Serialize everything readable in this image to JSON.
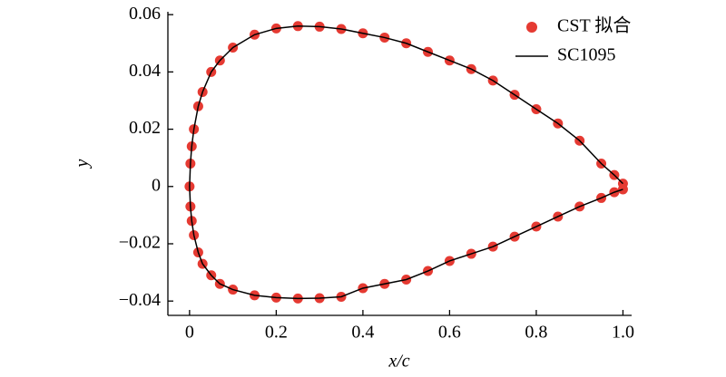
{
  "chart_data": {
    "type": "airfoil",
    "xlabel": "x/c",
    "ylabel": "y",
    "xlim": [
      -0.05,
      1.02
    ],
    "ylim": [
      -0.045,
      0.061
    ],
    "xticks": [
      0,
      0.2,
      0.4,
      0.6,
      0.8,
      {
        "value": 1,
        "label": "1.0"
      }
    ],
    "yticks": [
      {
        "value": -0.04,
        "label": "−0.04"
      },
      {
        "value": -0.02,
        "label": "−0.02"
      },
      0,
      0.02,
      0.04,
      0.06
    ],
    "legend": "upper right",
    "x": [
      1.0,
      0.98,
      0.95,
      0.9,
      0.85,
      0.8,
      0.75,
      0.7,
      0.65,
      0.6,
      0.55,
      0.5,
      0.45,
      0.4,
      0.35,
      0.3,
      0.25,
      0.2,
      0.15,
      0.1,
      0.07,
      0.05,
      0.03,
      0.02,
      0.01,
      0.005,
      0.002,
      0,
      0.002,
      0.005,
      0.01,
      0.02,
      0.03,
      0.05,
      0.07,
      0.1,
      0.15,
      0.2,
      0.25,
      0.3,
      0.35,
      0.4,
      0.45,
      0.5,
      0.55,
      0.6,
      0.65,
      0.7,
      0.75,
      0.8,
      0.85,
      0.9,
      0.95,
      0.98,
      1.0
    ],
    "series": [
      {
        "name": "CST 拟合",
        "kind": "scatter",
        "color": "#e53a32",
        "values": [
          0.001,
          0.004,
          0.008,
          0.016,
          0.022,
          0.027,
          0.032,
          0.037,
          0.041,
          0.044,
          0.047,
          0.05,
          0.052,
          0.0535,
          0.055,
          0.0558,
          0.056,
          0.0552,
          0.053,
          0.0485,
          0.044,
          0.04,
          0.033,
          0.028,
          0.02,
          0.014,
          0.008,
          0,
          -0.007,
          -0.012,
          -0.017,
          -0.023,
          -0.027,
          -0.031,
          -0.034,
          -0.036,
          -0.038,
          -0.0388,
          -0.0391,
          -0.039,
          -0.0385,
          -0.0355,
          -0.034,
          -0.0325,
          -0.0295,
          -0.026,
          -0.0235,
          -0.021,
          -0.0175,
          -0.014,
          -0.0105,
          -0.007,
          -0.004,
          -0.002,
          -0.001
        ]
      },
      {
        "name": "SC1095",
        "kind": "line",
        "color": "#000000",
        "values": [
          0.001,
          0.004,
          0.008,
          0.016,
          0.022,
          0.027,
          0.032,
          0.037,
          0.041,
          0.044,
          0.047,
          0.05,
          0.052,
          0.0535,
          0.055,
          0.0558,
          0.056,
          0.0552,
          0.053,
          0.0485,
          0.044,
          0.04,
          0.033,
          0.028,
          0.02,
          0.014,
          0.008,
          0,
          -0.007,
          -0.012,
          -0.017,
          -0.023,
          -0.027,
          -0.031,
          -0.034,
          -0.036,
          -0.038,
          -0.0388,
          -0.0391,
          -0.039,
          -0.0385,
          -0.0355,
          -0.034,
          -0.0325,
          -0.0295,
          -0.026,
          -0.0235,
          -0.021,
          -0.0175,
          -0.014,
          -0.0105,
          -0.007,
          -0.004,
          -0.002,
          -0.001
        ]
      }
    ]
  }
}
